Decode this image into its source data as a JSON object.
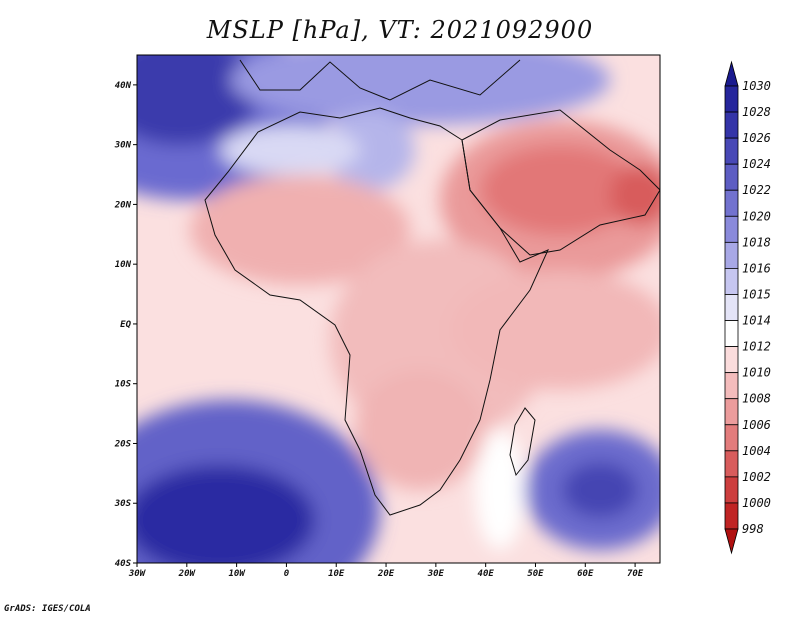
{
  "title": "MSLP [hPa], VT: 2021092900",
  "credit": "GrADS: IGES/COLA",
  "map": {
    "lat_ticks": [
      "40N",
      "30N",
      "20N",
      "10N",
      "EQ",
      "10S",
      "20S",
      "30S",
      "40S"
    ],
    "lon_ticks": [
      "30W",
      "20W",
      "10W",
      "0",
      "10E",
      "20E",
      "30E",
      "40E",
      "50E",
      "60E",
      "70E"
    ],
    "lat_range": [
      -40,
      45
    ],
    "lon_range": [
      -30,
      75
    ]
  },
  "colorbar": {
    "levels": [
      "1030",
      "1028",
      "1026",
      "1024",
      "1022",
      "1020",
      "1018",
      "1016",
      "1015",
      "1014",
      "1012",
      "1010",
      "1008",
      "1006",
      "1004",
      "1002",
      "1000",
      "998"
    ],
    "colors": [
      "#1a1a8f",
      "#26269c",
      "#3434a8",
      "#4848b6",
      "#5d5dc3",
      "#7272cf",
      "#8a8adb",
      "#a8a8e6",
      "#c6c6f0",
      "#e4e4f7",
      "#ffffff",
      "#fbdcdc",
      "#f4bcbc",
      "#ec9c9c",
      "#e37c7c",
      "#d85c5c",
      "#cd3e3e",
      "#c02424",
      "#b01010"
    ]
  }
}
